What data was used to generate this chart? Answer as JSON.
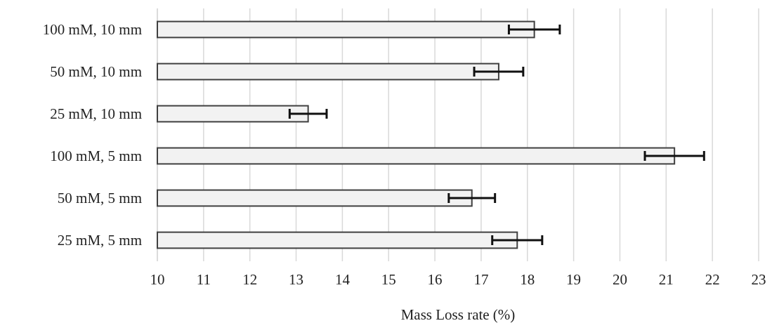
{
  "chart_data": {
    "type": "bar",
    "orientation": "horizontal",
    "xlabel": "Mass Loss rate (%)",
    "categories": [
      "100 mM, 10 mm",
      "50 mM, 10 mm",
      "25 mM, 10 mm",
      "100 mM, 5 mm",
      "50 mM, 5 mm",
      "25 mM, 5 mm"
    ],
    "values": [
      18.15,
      17.38,
      13.26,
      21.18,
      16.8,
      17.78
    ],
    "errors": [
      0.55,
      0.53,
      0.4,
      0.64,
      0.5,
      0.54
    ],
    "color": "#f2f2f2",
    "xlim": [
      10,
      23
    ],
    "xticks": [
      10,
      11,
      12,
      13,
      14,
      15,
      16,
      17,
      18,
      19,
      20,
      21,
      22,
      23
    ],
    "grid": "x"
  }
}
